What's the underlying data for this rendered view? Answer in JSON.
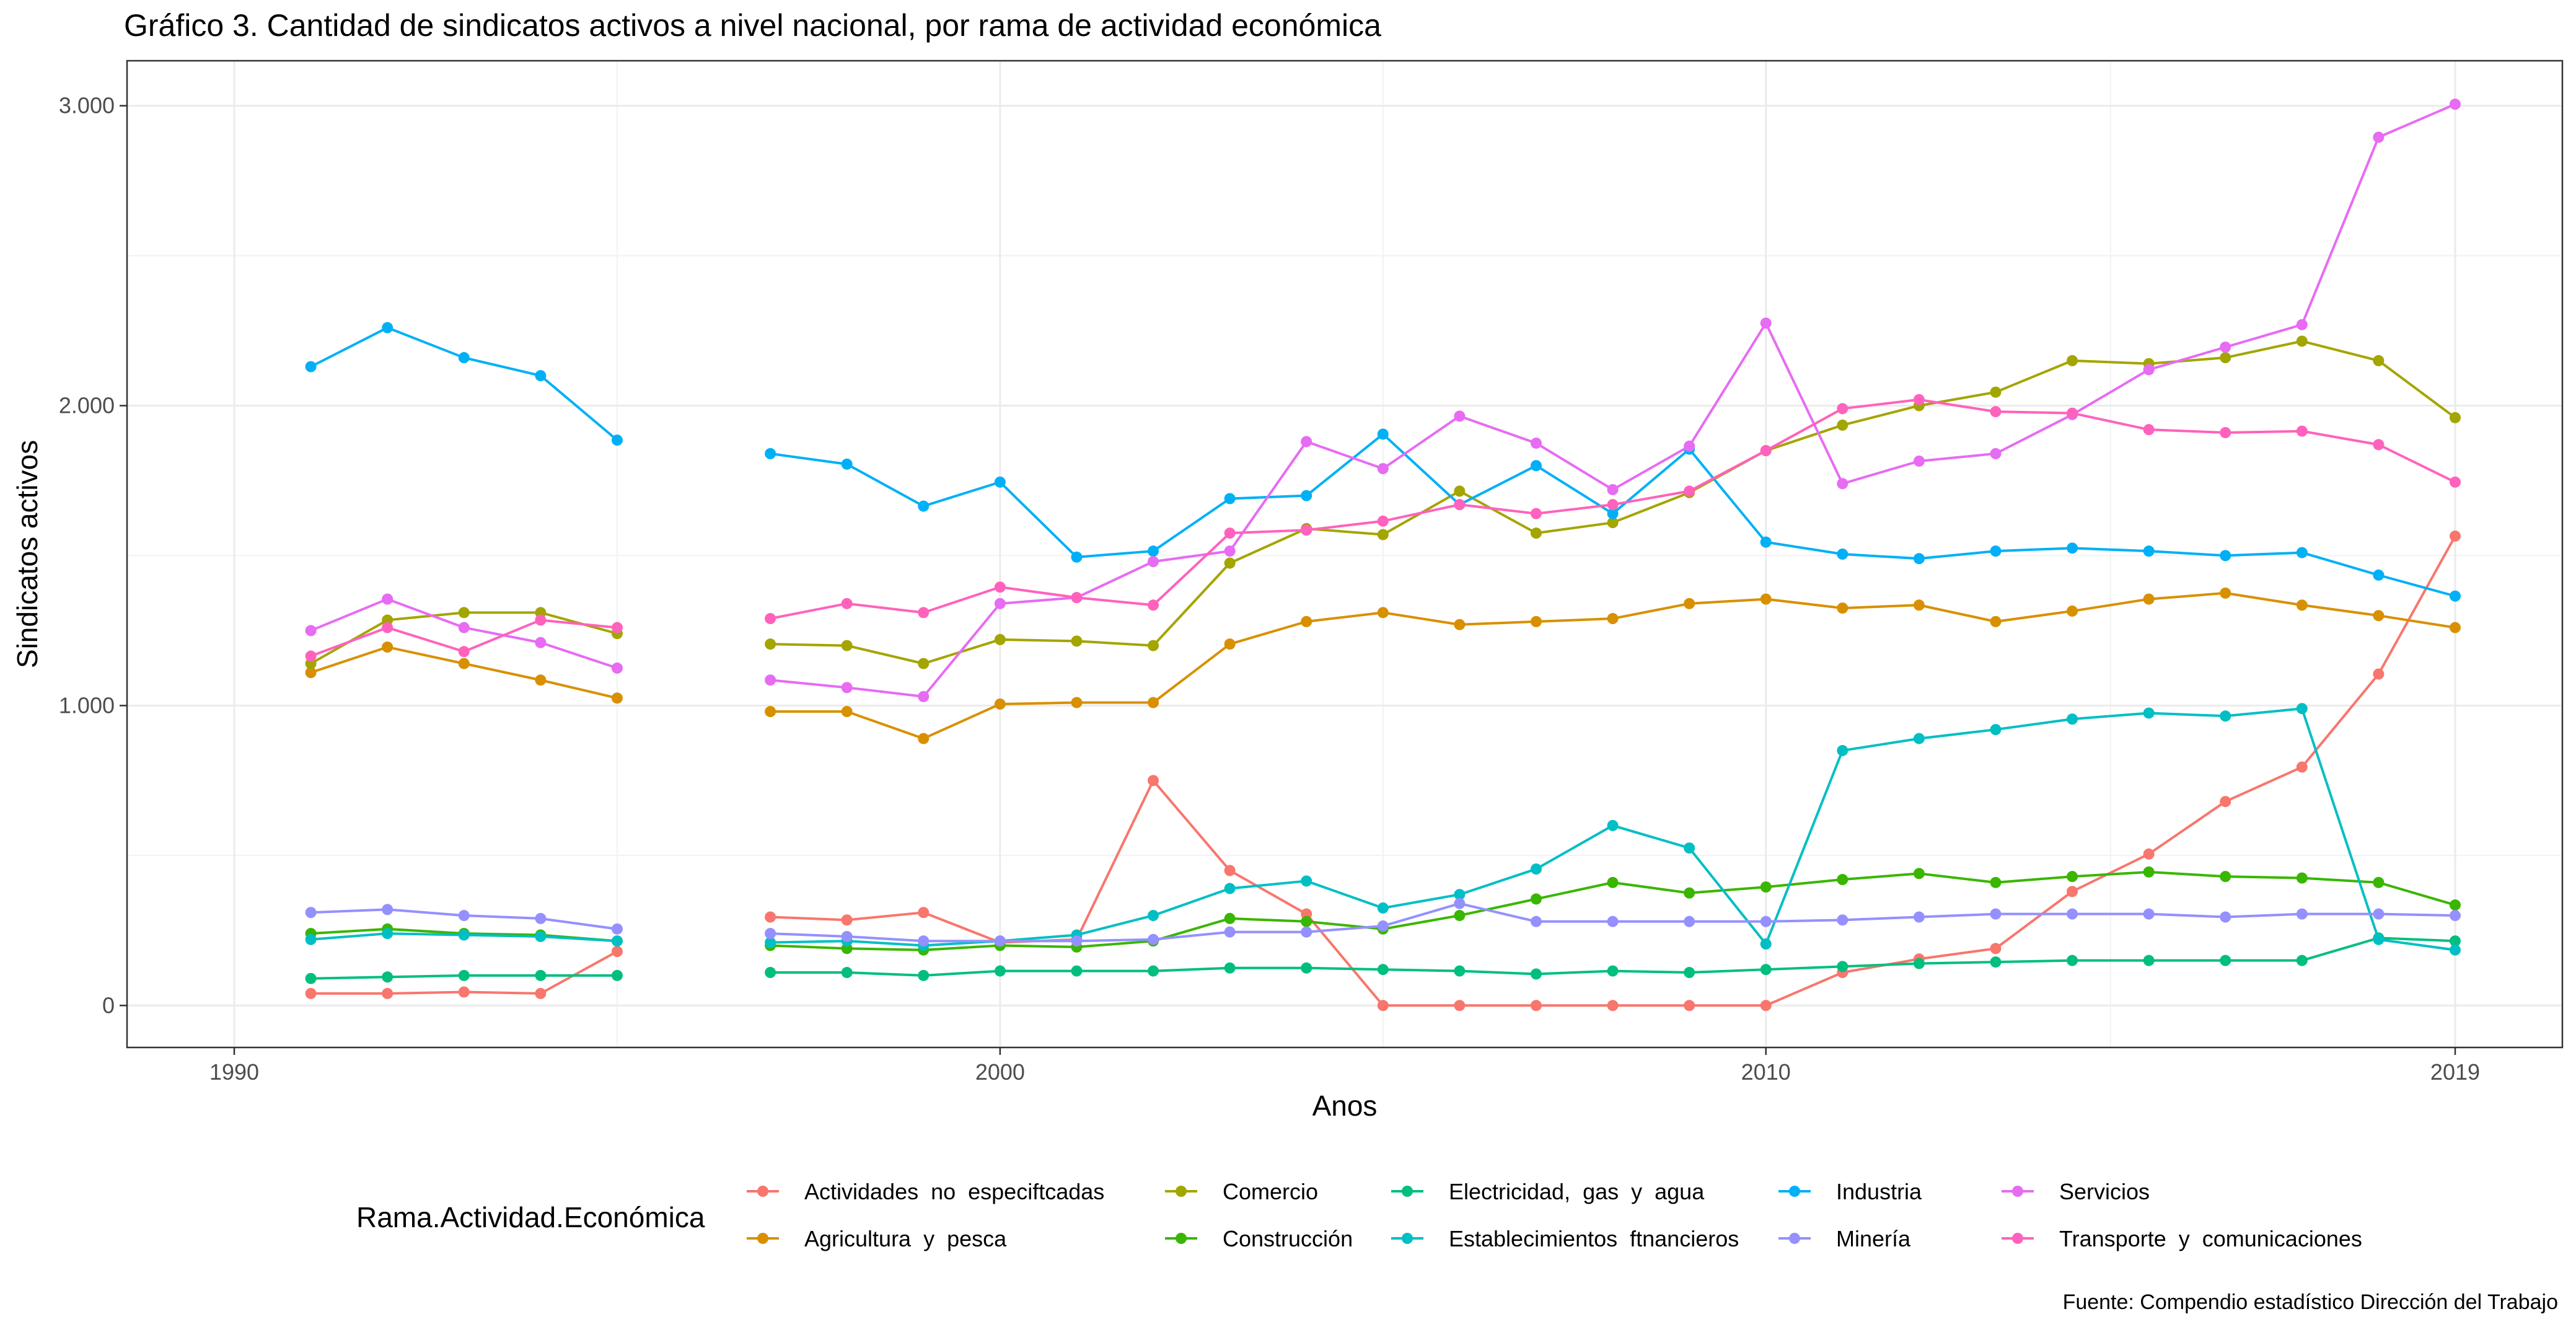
{
  "chart_data": {
    "type": "line",
    "title": "Gráfico 3. Cantidad de sindicatos activos a nivel nacional, por rama de actividad económica",
    "xlabel": "Anos",
    "ylabel": "Sindicatos activos",
    "caption": "Fuente: Compendio estadístico Dirección del Trabajo",
    "legend_title": "Rama.Actividad.Económica",
    "legend_position": "bottom",
    "grid": true,
    "xlim": [
      1988.6,
      2020.4
    ],
    "ylim": [
      -140,
      3150
    ],
    "x_ticks": [
      {
        "value": 1990,
        "label": "1990"
      },
      {
        "value": 2000,
        "label": "2000"
      },
      {
        "value": 2010,
        "label": "2010"
      },
      {
        "value": 2019,
        "label": "2019"
      }
    ],
    "y_ticks": [
      {
        "value": 0,
        "label": "0"
      },
      {
        "value": 1000,
        "label": "1.000"
      },
      {
        "value": 2000,
        "label": "2.000"
      },
      {
        "value": 3000,
        "label": "3.000"
      }
    ],
    "x": [
      1991,
      1992,
      1993,
      1994,
      1995,
      1997,
      1998,
      1999,
      2000,
      2001,
      2002,
      2003,
      2004,
      2005,
      2006,
      2007,
      2008,
      2009,
      2010,
      2011,
      2012,
      2013,
      2014,
      2015,
      2016,
      2017,
      2018,
      2019
    ],
    "series": [
      {
        "name": "Actividades  no  especiftcadas",
        "color": "#F8766D",
        "values": [
          40,
          40,
          45,
          40,
          180,
          295,
          285,
          310,
          210,
          220,
          750,
          450,
          305,
          0,
          0,
          0,
          0,
          0,
          0,
          110,
          155,
          190,
          380,
          505,
          680,
          795,
          1105,
          1565
        ]
      },
      {
        "name": "Agricultura  y  pesca",
        "color": "#D89000",
        "values": [
          1110,
          1195,
          1140,
          1085,
          1025,
          980,
          980,
          890,
          1005,
          1010,
          1010,
          1205,
          1280,
          1310,
          1270,
          1280,
          1290,
          1340,
          1355,
          1325,
          1335,
          1280,
          1315,
          1355,
          1375,
          1335,
          1300,
          1260
        ]
      },
      {
        "name": "Comercio",
        "color": "#A3A500",
        "values": [
          1140,
          1285,
          1310,
          1310,
          1240,
          1205,
          1200,
          1140,
          1220,
          1215,
          1200,
          1475,
          1590,
          1570,
          1715,
          1575,
          1610,
          1710,
          1850,
          1935,
          2000,
          2045,
          2150,
          2140,
          2160,
          2215,
          2150,
          1960
        ]
      },
      {
        "name": "Construcción",
        "color": "#39B600",
        "values": [
          240,
          255,
          240,
          235,
          215,
          200,
          190,
          185,
          200,
          195,
          215,
          290,
          280,
          255,
          300,
          355,
          410,
          375,
          395,
          420,
          440,
          410,
          430,
          445,
          430,
          425,
          410,
          335
        ]
      },
      {
        "name": "Electricidad,  gas  y  agua",
        "color": "#00BF7D",
        "values": [
          90,
          95,
          100,
          100,
          100,
          110,
          110,
          100,
          115,
          115,
          115,
          125,
          125,
          120,
          115,
          105,
          115,
          110,
          120,
          130,
          140,
          145,
          150,
          150,
          150,
          150,
          225,
          215
        ]
      },
      {
        "name": "Establecimientos  ftnancieros",
        "color": "#00BFC4",
        "values": [
          220,
          240,
          235,
          230,
          215,
          210,
          215,
          200,
          215,
          235,
          300,
          390,
          415,
          325,
          370,
          455,
          600,
          525,
          205,
          850,
          890,
          920,
          955,
          975,
          965,
          990,
          220,
          185
        ]
      },
      {
        "name": "Industria",
        "color": "#00B0F6",
        "values": [
          2130,
          2260,
          2160,
          2100,
          1885,
          1840,
          1805,
          1665,
          1745,
          1495,
          1515,
          1690,
          1700,
          1905,
          1670,
          1800,
          1640,
          1855,
          1545,
          1505,
          1490,
          1515,
          1525,
          1515,
          1500,
          1510,
          1435,
          1365
        ]
      },
      {
        "name": "Minería",
        "color": "#9590FF",
        "values": [
          310,
          320,
          300,
          290,
          255,
          240,
          230,
          215,
          215,
          215,
          220,
          245,
          245,
          265,
          340,
          280,
          280,
          280,
          280,
          285,
          295,
          305,
          305,
          305,
          295,
          305,
          305,
          300
        ]
      },
      {
        "name": "Servicios",
        "color": "#E76BF3",
        "values": [
          1250,
          1355,
          1260,
          1210,
          1125,
          1085,
          1060,
          1030,
          1340,
          1360,
          1480,
          1515,
          1880,
          1790,
          1965,
          1875,
          1720,
          1865,
          2275,
          1740,
          1815,
          1840,
          1970,
          2120,
          2195,
          2270,
          2895,
          3005
        ]
      },
      {
        "name": "Transporte  y  comunicaciones",
        "color": "#FF62BC",
        "values": [
          1165,
          1260,
          1180,
          1285,
          1260,
          1290,
          1340,
          1310,
          1395,
          1360,
          1335,
          1575,
          1585,
          1615,
          1670,
          1640,
          1670,
          1715,
          1850,
          1990,
          2020,
          1980,
          1975,
          1920,
          1910,
          1915,
          1870,
          1745
        ]
      }
    ]
  }
}
